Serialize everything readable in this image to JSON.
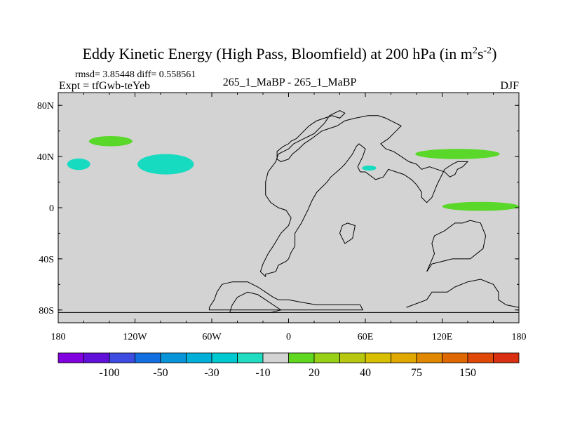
{
  "chart_data": {
    "type": "map",
    "title": {
      "main": "Eddy Kinetic Energy (High Pass, Bloomfield) at 200 hPa (in m",
      "sup1": "2",
      "mid": "s",
      "sup2": "-2",
      "end": ")"
    },
    "stats": "rmsd= 3.85448 diff= 0.558561",
    "expt": "Expt = tfGwb-teYeb",
    "center": "265_1_MaBP - 265_1_MaBP",
    "season": "DJF",
    "xlim": [
      -180,
      180
    ],
    "ylim": [
      -90,
      90
    ],
    "x_ticks": [
      {
        "value": -180,
        "label": "180"
      },
      {
        "value": -120,
        "label": "120W"
      },
      {
        "value": -60,
        "label": "60W"
      },
      {
        "value": 0,
        "label": "0"
      },
      {
        "value": 60,
        "label": "60E"
      },
      {
        "value": 120,
        "label": "120E"
      },
      {
        "value": 180,
        "label": "180"
      }
    ],
    "y_ticks": [
      {
        "value": 80,
        "label": "80N"
      },
      {
        "value": 40,
        "label": "40N"
      },
      {
        "value": 0,
        "label": "0"
      },
      {
        "value": -40,
        "label": "40S"
      },
      {
        "value": -80,
        "label": "80S"
      }
    ],
    "background_color": "#d3d3d3",
    "anomalies": [
      {
        "name": "green-patch-north-pacific",
        "lon": -139,
        "lat": 52,
        "rlon": 17,
        "rlat": 4,
        "color": "#5ad82a"
      },
      {
        "name": "cyan-patch-west-pacific",
        "lon": -164,
        "lat": 34,
        "rlon": 9,
        "rlat": 4.5,
        "color": "#17dbc0"
      },
      {
        "name": "cyan-patch-east-pacific",
        "lon": -96,
        "lat": 34,
        "rlon": 22,
        "rlat": 8,
        "color": "#17dbc0"
      },
      {
        "name": "cyan-patch-mideast",
        "lon": 63,
        "lat": 31,
        "rlon": 5.5,
        "rlat": 2,
        "color": "#17dbc0"
      },
      {
        "name": "green-patch-north-asia-pacific",
        "lon": 132,
        "lat": 42,
        "rlon": 33,
        "rlat": 4,
        "color": "#5ad82a"
      },
      {
        "name": "green-patch-equatorial-pacific",
        "lon": 150,
        "lat": 1,
        "rlon": 30,
        "rlat": 3.5,
        "color": "#5ad82a"
      }
    ],
    "colorbar": {
      "colors": [
        "#8000e0",
        "#6010d8",
        "#3c4ce0",
        "#1470e0",
        "#0894d8",
        "#00b0d8",
        "#00c8d0",
        "#20dcc0",
        "#d3d3d3",
        "#60d820",
        "#98d018",
        "#b8c810",
        "#d8c000",
        "#e0a800",
        "#e08800",
        "#e06800",
        "#e04808",
        "#d83010"
      ],
      "labels": [
        {
          "boundary": 2,
          "text": "-100"
        },
        {
          "boundary": 4,
          "text": "-50"
        },
        {
          "boundary": 6,
          "text": "-30"
        },
        {
          "boundary": 8,
          "text": "-10"
        },
        {
          "boundary": 10,
          "text": "20"
        },
        {
          "boundary": 12,
          "text": "40"
        },
        {
          "boundary": 14,
          "text": "75"
        },
        {
          "boundary": 16,
          "text": "150"
        }
      ]
    },
    "coastlines": [
      [
        [
          -18,
          -54
        ],
        [
          -18,
          -52
        ],
        [
          -10,
          -50
        ],
        [
          -8,
          -45
        ],
        [
          -2,
          -42
        ],
        [
          0,
          -40
        ],
        [
          2,
          -35
        ],
        [
          5,
          -30
        ],
        [
          5,
          -20
        ],
        [
          10,
          -12
        ],
        [
          15,
          -2
        ],
        [
          18,
          5
        ],
        [
          22,
          12
        ],
        [
          30,
          20
        ],
        [
          33,
          24
        ],
        [
          40,
          30
        ],
        [
          44,
          34
        ],
        [
          50,
          42
        ],
        [
          53,
          48
        ],
        [
          55,
          50
        ],
        [
          60,
          46
        ],
        [
          58,
          40
        ],
        [
          56,
          36
        ],
        [
          54,
          32
        ],
        [
          56,
          28
        ],
        [
          60,
          28
        ],
        [
          68,
          22
        ],
        [
          74,
          24
        ],
        [
          78,
          30
        ],
        [
          84,
          28
        ],
        [
          90,
          26
        ],
        [
          96,
          22
        ],
        [
          100,
          18
        ],
        [
          104,
          12
        ],
        [
          104,
          8
        ],
        [
          108,
          4
        ],
        [
          112,
          8
        ],
        [
          116,
          18
        ],
        [
          118,
          22
        ],
        [
          122,
          30
        ],
        [
          128,
          34
        ],
        [
          132,
          36
        ],
        [
          140,
          36
        ],
        [
          136,
          32
        ],
        [
          132,
          30
        ],
        [
          130,
          26
        ],
        [
          126,
          24
        ],
        [
          122,
          28
        ],
        [
          116,
          30
        ],
        [
          110,
          32
        ],
        [
          104,
          30
        ],
        [
          100,
          34
        ],
        [
          94,
          36
        ],
        [
          88,
          40
        ],
        [
          82,
          44
        ],
        [
          76,
          46
        ],
        [
          72,
          50
        ],
        [
          78,
          54
        ],
        [
          84,
          60
        ],
        [
          88,
          64
        ],
        [
          80,
          68
        ],
        [
          76,
          70
        ],
        [
          70,
          72
        ],
        [
          62,
          72
        ],
        [
          52,
          70
        ],
        [
          44,
          68
        ],
        [
          38,
          64
        ],
        [
          32,
          62
        ],
        [
          26,
          60
        ],
        [
          18,
          54
        ],
        [
          12,
          50
        ],
        [
          8,
          46
        ],
        [
          3,
          42
        ],
        [
          0,
          38
        ],
        [
          -6,
          36
        ],
        [
          -9,
          38
        ],
        [
          -9,
          44
        ],
        [
          -4,
          48
        ],
        [
          0,
          50
        ],
        [
          2,
          52
        ],
        [
          6,
          54
        ],
        [
          10,
          58
        ],
        [
          16,
          64
        ],
        [
          22,
          68
        ],
        [
          28,
          70
        ],
        [
          34,
          72
        ],
        [
          40,
          70
        ],
        [
          44,
          74
        ],
        [
          40,
          76
        ],
        [
          32,
          72
        ],
        [
          28,
          66
        ],
        [
          24,
          62
        ],
        [
          20,
          58
        ],
        [
          16,
          56
        ],
        [
          12,
          54
        ],
        [
          8,
          52
        ],
        [
          4,
          50
        ],
        [
          0,
          46
        ],
        [
          -4,
          44
        ],
        [
          -8,
          42
        ],
        [
          -10,
          36
        ],
        [
          -16,
          28
        ],
        [
          -18,
          20
        ],
        [
          -18,
          10
        ],
        [
          -14,
          4
        ],
        [
          -8,
          0
        ],
        [
          -2,
          -2
        ],
        [
          2,
          -8
        ],
        [
          0,
          -14
        ],
        [
          -6,
          -20
        ],
        [
          -12,
          -30
        ],
        [
          -16,
          -36
        ],
        [
          -20,
          -44
        ],
        [
          -22,
          -50
        ],
        [
          -18,
          -54
        ]
      ],
      [
        [
          46,
          -12
        ],
        [
          52,
          -14
        ],
        [
          50,
          -24
        ],
        [
          44,
          -28
        ],
        [
          40,
          -20
        ],
        [
          42,
          -14
        ],
        [
          46,
          -12
        ]
      ],
      [
        [
          108,
          -50
        ],
        [
          112,
          -44
        ],
        [
          128,
          -40
        ],
        [
          142,
          -40
        ],
        [
          152,
          -32
        ],
        [
          154,
          -22
        ],
        [
          150,
          -12
        ],
        [
          142,
          -10
        ],
        [
          136,
          -12
        ],
        [
          130,
          -12
        ],
        [
          122,
          -18
        ],
        [
          114,
          -22
        ],
        [
          112,
          -28
        ],
        [
          114,
          -36
        ],
        [
          108,
          -50
        ]
      ],
      [
        [
          -62,
          -78
        ],
        [
          -58,
          -72
        ],
        [
          -56,
          -66
        ],
        [
          -52,
          -60
        ],
        [
          -44,
          -58
        ],
        [
          -32,
          -58
        ],
        [
          -24,
          -62
        ],
        [
          -18,
          -66
        ],
        [
          -12,
          -70
        ],
        [
          -8,
          -72
        ],
        [
          0,
          -72
        ],
        [
          10,
          -74
        ],
        [
          22,
          -76
        ],
        [
          34,
          -76
        ],
        [
          46,
          -76
        ],
        [
          56,
          -76
        ],
        [
          58,
          -80
        ],
        [
          40,
          -80
        ],
        [
          20,
          -80
        ],
        [
          0,
          -80
        ],
        [
          -20,
          -80
        ],
        [
          -40,
          -80
        ],
        [
          -62,
          -80
        ],
        [
          -62,
          -78
        ]
      ],
      [
        [
          -180,
          -82
        ],
        [
          -120,
          -82
        ],
        [
          -60,
          -82
        ],
        [
          0,
          -82
        ],
        [
          60,
          -82
        ],
        [
          120,
          -82
        ],
        [
          180,
          -82
        ]
      ],
      [
        [
          -46,
          -82
        ],
        [
          -44,
          -76
        ],
        [
          -40,
          -70
        ],
        [
          -32,
          -66
        ],
        [
          -24,
          -68
        ],
        [
          -18,
          -72
        ],
        [
          -12,
          -76
        ],
        [
          -6,
          -80
        ],
        [
          -14,
          -82
        ],
        [
          -30,
          -82
        ],
        [
          -46,
          -82
        ]
      ],
      [
        [
          92,
          -78
        ],
        [
          108,
          -72
        ],
        [
          112,
          -66
        ],
        [
          124,
          -66
        ],
        [
          130,
          -62
        ],
        [
          140,
          -58
        ],
        [
          150,
          -56
        ],
        [
          160,
          -60
        ],
        [
          164,
          -66
        ],
        [
          164,
          -72
        ],
        [
          170,
          -76
        ],
        [
          180,
          -78
        ]
      ]
    ]
  }
}
